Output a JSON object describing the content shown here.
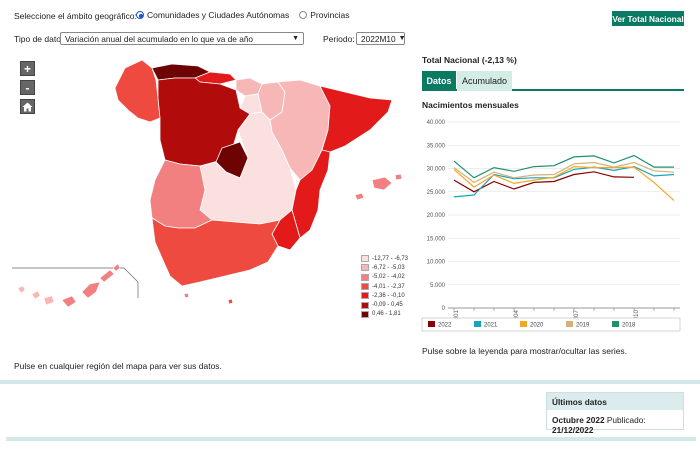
{
  "selector": {
    "label": "Seleccione el ámbito geográfico:",
    "options": [
      {
        "label": "Comunidades y Ciudades Autónomas",
        "selected": true
      },
      {
        "label": "Provincias",
        "selected": false
      }
    ]
  },
  "button_total": "Ver Total Nacional",
  "tipo": {
    "label": "Tipo de dato",
    "value": "Variación anual del acumulado en lo que va de año"
  },
  "periodo": {
    "label": "Periodo:",
    "value": "2022M10"
  },
  "zoom": {
    "in": "+",
    "out": "-"
  },
  "legend": [
    {
      "label": "-12,77 - -6,73",
      "color": "#fbe0e0"
    },
    {
      "label": "-6,72 - -5,03",
      "color": "#f7b7b7"
    },
    {
      "label": "-5,02 - -4,02",
      "color": "#f28080"
    },
    {
      "label": "-4,01 - -2,37",
      "color": "#ee4a40"
    },
    {
      "label": "-2,36 - -0,10",
      "color": "#e21a1a"
    },
    {
      "label": "-0,09 - 0,45",
      "color": "#b20b0b"
    },
    {
      "label": "0,46 - 1,81",
      "color": "#6e0303"
    }
  ],
  "map_hint": "Pulse en cualquier región del mapa para ver sus datos.",
  "total_title": "Total Nacional (-2,13 %)",
  "tabs": [
    "Datos",
    "Acumulado"
  ],
  "chart_title": "Nacimientos mensuales",
  "series_hint": "Pulse sobre la leyenda para mostrar/ocultar las series.",
  "ultimos": {
    "title": "Últimos datos",
    "period": "Octubre 2022",
    "published_label": "Publicado:",
    "published_date": "21/12/2022"
  },
  "colors": {
    "accent": "#0b7a63",
    "map_outline": "#ffffff"
  },
  "icons": {
    "home": "home-icon"
  },
  "chart_data": {
    "type": "line",
    "ylim": [
      0,
      40000
    ],
    "yticks": [
      "0",
      "5.000",
      "10.000",
      "15.000",
      "20.000",
      "25.000",
      "30.000",
      "35.000",
      "40.000"
    ],
    "x": [
      "M01",
      "M02",
      "M03",
      "M04",
      "M05",
      "M06",
      "M07",
      "M08",
      "M09",
      "M10",
      "M11",
      "M12"
    ],
    "xticks": [
      "M01",
      "M04",
      "M07",
      "M10"
    ],
    "series": [
      {
        "name": "2022",
        "color": "#8b0000",
        "values": [
          27500,
          25000,
          27200,
          25600,
          27000,
          27200,
          28700,
          29300,
          28200,
          28100,
          null,
          null
        ]
      },
      {
        "name": "2021",
        "color": "#17a6b8",
        "values": [
          23900,
          24300,
          28700,
          27800,
          28000,
          28000,
          29800,
          30300,
          29600,
          30400,
          28400,
          28700
        ]
      },
      {
        "name": "2020",
        "color": "#f5a623",
        "values": [
          29800,
          26000,
          28600,
          26800,
          27500,
          28100,
          30400,
          30200,
          30200,
          30300,
          27000,
          23100
        ]
      },
      {
        "name": "2019",
        "color": "#d4b07a",
        "values": [
          30200,
          27000,
          29200,
          28000,
          28600,
          28700,
          31000,
          31300,
          30300,
          31300,
          29500,
          29200
        ]
      },
      {
        "name": "2018",
        "color": "#1f8f6e",
        "values": [
          31600,
          28000,
          30200,
          29400,
          30400,
          30600,
          32500,
          32700,
          31200,
          32800,
          30300,
          30300
        ]
      }
    ]
  }
}
